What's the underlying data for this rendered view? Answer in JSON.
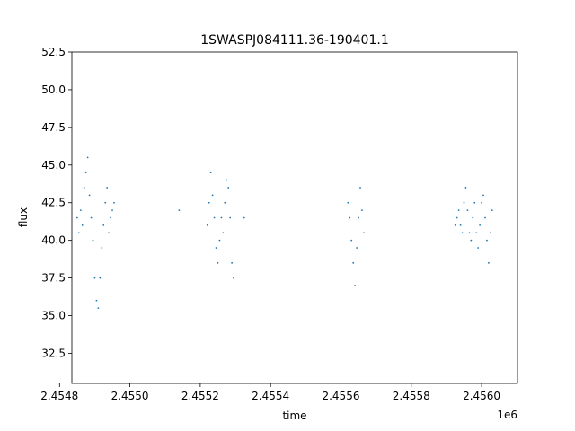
{
  "chart_data": {
    "type": "scatter",
    "title": "1SWASPJ084111.36-190401.1",
    "xlabel": "time",
    "ylabel": "flux",
    "x_offset_label": "1e6",
    "xlim": [
      2.454835,
      2.456102
    ],
    "ylim": [
      30.5,
      52.5
    ],
    "x_ticks": [
      2.4548,
      2.455,
      2.4552,
      2.4554,
      2.4556,
      2.4558,
      2.456
    ],
    "x_tick_labels": [
      "2.4548",
      "2.4550",
      "2.4552",
      "2.4554",
      "2.4556",
      "2.4558",
      "2.4560"
    ],
    "y_ticks": [
      32.5,
      35.0,
      37.5,
      40.0,
      42.5,
      45.0,
      47.5,
      50.0,
      52.5
    ],
    "y_tick_labels": [
      "32.5",
      "35.0",
      "37.5",
      "40.0",
      "42.5",
      "45.0",
      "47.5",
      "50.0",
      "52.5"
    ],
    "grid": false,
    "legend": "none",
    "marker_color": "#1f77b4",
    "series": [
      {
        "x": [
          2.45485,
          2.454855,
          2.45486,
          2.454865,
          2.45487,
          2.454875,
          2.45488,
          2.454885,
          2.45489,
          2.454895,
          2.4549,
          2.454905,
          2.45491,
          2.454915,
          2.45492,
          2.454925,
          2.45493,
          2.454935,
          2.45494,
          2.454945,
          2.45495,
          2.454955,
          2.45514,
          2.45522,
          2.455225,
          2.45523,
          2.455235,
          2.45524,
          2.455245,
          2.45525,
          2.455255,
          2.45526,
          2.455265,
          2.45527,
          2.455275,
          2.45528,
          2.455285,
          2.45529,
          2.455295,
          2.455325,
          2.45562,
          2.455625,
          2.45563,
          2.455635,
          2.45564,
          2.455645,
          2.45565,
          2.455655,
          2.45566,
          2.455665,
          2.455925,
          2.45593,
          2.455935,
          2.45594,
          2.455945,
          2.45595,
          2.455955,
          2.45596,
          2.455965,
          2.45597,
          2.455975,
          2.45598,
          2.455985,
          2.45599,
          2.455995,
          2.456,
          2.456005,
          2.45601,
          2.456015,
          2.45602,
          2.456025,
          2.45603
        ],
        "y": [
          41.5,
          40.5,
          42.0,
          41.0,
          43.5,
          44.5,
          45.5,
          43.0,
          41.5,
          40.0,
          37.5,
          36.0,
          35.5,
          37.5,
          39.5,
          41.0,
          42.5,
          43.5,
          40.5,
          41.5,
          42.0,
          42.5,
          42.0,
          41.0,
          42.5,
          44.5,
          43.0,
          41.5,
          39.5,
          38.5,
          40.0,
          41.5,
          40.5,
          42.5,
          44.0,
          43.5,
          41.5,
          38.5,
          37.5,
          41.5,
          42.5,
          41.5,
          40.0,
          38.5,
          37.0,
          39.5,
          41.5,
          43.5,
          42.0,
          40.5,
          41.0,
          41.5,
          42.0,
          41.0,
          40.5,
          42.5,
          43.5,
          42.0,
          40.5,
          40.0,
          41.5,
          42.5,
          40.5,
          39.5,
          41.0,
          42.5,
          43.0,
          41.5,
          40.0,
          38.5,
          40.5,
          42.0
        ]
      }
    ]
  }
}
